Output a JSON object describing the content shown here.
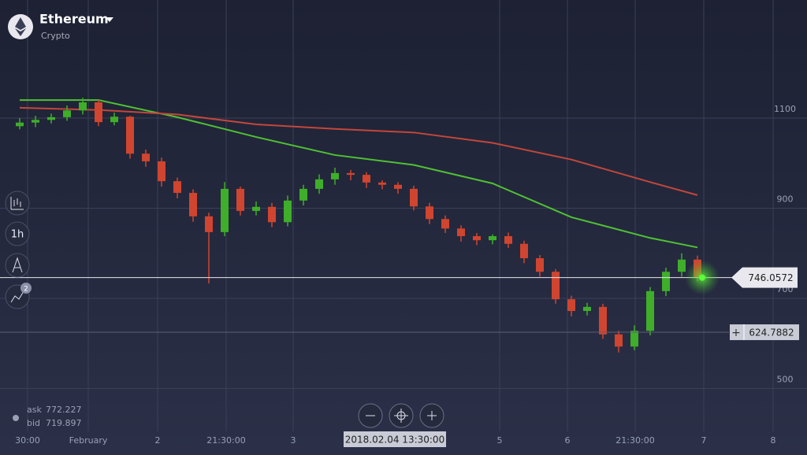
{
  "header": {
    "title": "Ethereum",
    "subtitle": "Crypto"
  },
  "toolbar": {
    "timeframe": "1h",
    "indicator_count": "2"
  },
  "quotes": {
    "ask_label": "ask",
    "ask": 772.227,
    "bid_label": "bid",
    "bid": 719.897
  },
  "crosshair_time": "2018.02.04 13:30:00",
  "chart_data": {
    "type": "candlestick",
    "xlim": [
      -1.25,
      49.95
    ],
    "ylim": [
      352.4,
      1362
    ],
    "xticks": [
      {
        "value": 0.5,
        "label": "30:00"
      },
      {
        "value": 4.35,
        "label": "February"
      },
      {
        "value": 8.75,
        "label": "2"
      },
      {
        "value": 13.1,
        "label": "21:30:00"
      },
      {
        "value": 17.35,
        "label": "3"
      },
      {
        "value": 30.45,
        "label": "5"
      },
      {
        "value": 34.75,
        "label": "6"
      },
      {
        "value": 39.05,
        "label": "21:30:00"
      },
      {
        "value": 43.4,
        "label": "7"
      },
      {
        "value": 47.8,
        "label": "8"
      }
    ],
    "yticks": [
      1100,
      900,
      700,
      500
    ],
    "grid": true,
    "up_color": "#3fae2a",
    "down_color": "#d0452f",
    "open": [
      1082,
      1090,
      1096,
      1102,
      1117,
      1135,
      1091,
      1103,
      1021,
      1004,
      960,
      934,
      882,
      847,
      943,
      894,
      903,
      869,
      917,
      943,
      964,
      978,
      974,
      957,
      952,
      943,
      904,
      876,
      855,
      838,
      829,
      838,
      821,
      789,
      759,
      698,
      672,
      681,
      620,
      593,
      628,
      716,
      759,
      786
    ],
    "high": [
      1100,
      1105,
      1110,
      1128,
      1145,
      1140,
      1112,
      1105,
      1030,
      1012,
      968,
      942,
      890,
      958,
      948,
      915,
      912,
      928,
      952,
      975,
      990,
      985,
      980,
      962,
      958,
      950,
      912,
      884,
      862,
      845,
      842,
      846,
      828,
      796,
      765,
      706,
      690,
      688,
      628,
      640,
      725,
      768,
      800,
      795
    ],
    "low": [
      1075,
      1080,
      1088,
      1094,
      1108,
      1082,
      1084,
      1010,
      992,
      948,
      922,
      870,
      733,
      838,
      884,
      884,
      858,
      860,
      906,
      932,
      952,
      962,
      945,
      942,
      932,
      895,
      865,
      845,
      826,
      818,
      820,
      812,
      778,
      748,
      688,
      660,
      662,
      610,
      580,
      585,
      618,
      705,
      748,
      738
    ],
    "close": [
      1090,
      1096,
      1102,
      1117,
      1135,
      1091,
      1103,
      1021,
      1004,
      960,
      934,
      882,
      847,
      943,
      894,
      903,
      869,
      917,
      943,
      964,
      978,
      974,
      957,
      952,
      943,
      904,
      876,
      855,
      838,
      829,
      838,
      821,
      789,
      759,
      698,
      672,
      681,
      620,
      593,
      628,
      716,
      759,
      786,
      746
    ],
    "lines": [
      {
        "color": "#4fc233",
        "x": [
          0,
          5,
          10,
          15,
          20,
          25,
          30,
          35,
          40,
          43
        ],
        "values": [
          1140,
          1140,
          1102,
          1058,
          1018,
          996,
          955,
          880,
          834,
          813
        ]
      },
      {
        "color": "#c2473a",
        "x": [
          0,
          5,
          10,
          15,
          20,
          25,
          30,
          35,
          40,
          43
        ],
        "values": [
          1123,
          1118,
          1108,
          1086,
          1076,
          1068,
          1045,
          1008,
          958,
          929
        ]
      }
    ],
    "current_price": 746.0572,
    "marker_price": 624.7882
  }
}
